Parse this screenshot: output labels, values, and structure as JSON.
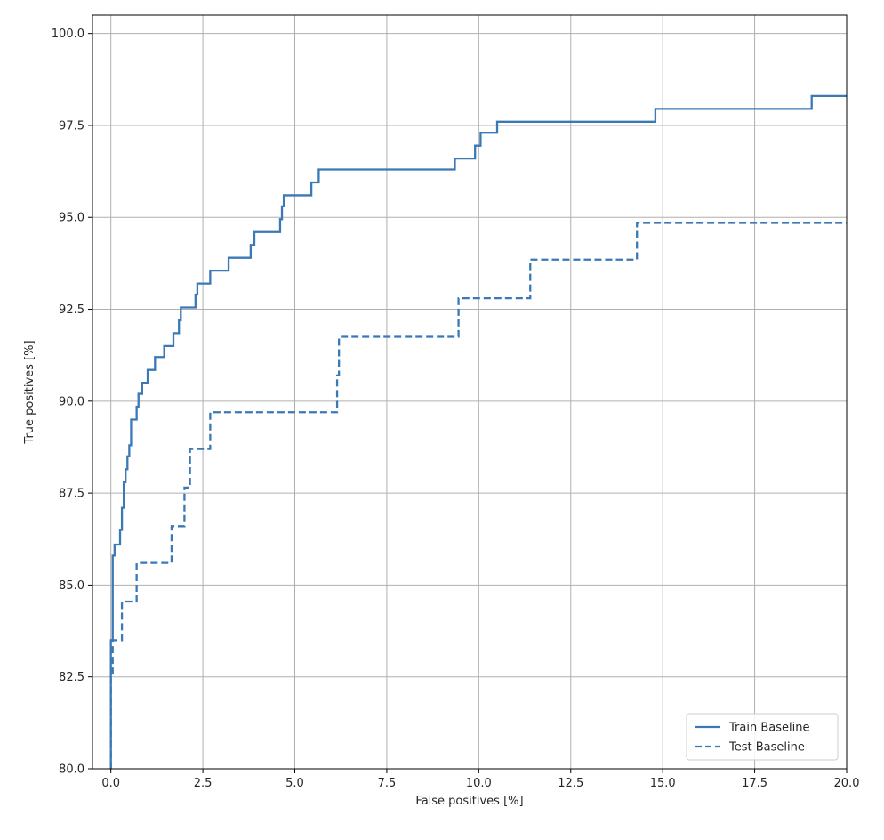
{
  "chart_data": {
    "type": "line",
    "title": "",
    "xlabel": "False positives [%]",
    "ylabel": "True positives [%]",
    "xlim": [
      -0.5,
      20
    ],
    "ylim": [
      80,
      100.5
    ],
    "grid": true,
    "legend_position": "lower-right",
    "x_ticks": [
      0.0,
      2.5,
      5.0,
      7.5,
      10.0,
      12.5,
      15.0,
      17.5,
      20.0
    ],
    "x_tick_labels": [
      "0.0",
      "2.5",
      "5.0",
      "7.5",
      "10.0",
      "12.5",
      "15.0",
      "17.5",
      "20.0"
    ],
    "y_ticks": [
      80.0,
      82.5,
      85.0,
      87.5,
      90.0,
      92.5,
      95.0,
      97.5,
      100.0
    ],
    "y_tick_labels": [
      "80.0",
      "82.5",
      "85.0",
      "87.5",
      "90.0",
      "92.5",
      "95.0",
      "97.5",
      "100.0"
    ],
    "series": [
      {
        "name": "Train Baseline",
        "color": "#3a78b6",
        "style": "solid",
        "x": [
          0.0,
          0.0,
          0.05,
          0.05,
          0.1,
          0.1,
          0.25,
          0.25,
          0.3,
          0.3,
          0.35,
          0.35,
          0.4,
          0.4,
          0.45,
          0.45,
          0.5,
          0.5,
          0.55,
          0.55,
          0.7,
          0.7,
          0.75,
          0.75,
          0.85,
          0.85,
          1.0,
          1.0,
          1.2,
          1.2,
          1.45,
          1.45,
          1.7,
          1.7,
          1.85,
          1.85,
          1.9,
          1.9,
          2.3,
          2.3,
          2.35,
          2.35,
          2.7,
          2.7,
          3.2,
          3.2,
          3.8,
          3.8,
          3.9,
          3.9,
          4.6,
          4.6,
          4.65,
          4.65,
          4.7,
          4.7,
          5.45,
          5.45,
          5.65,
          5.65,
          9.35,
          9.35,
          9.9,
          9.9,
          10.05,
          10.05,
          10.5,
          10.5,
          14.8,
          14.8,
          19.05,
          19.05,
          20.0
        ],
        "y": [
          80.0,
          83.5,
          83.5,
          85.8,
          85.8,
          86.1,
          86.1,
          86.5,
          86.5,
          87.1,
          87.1,
          87.8,
          87.8,
          88.15,
          88.15,
          88.5,
          88.5,
          88.8,
          88.8,
          89.5,
          89.5,
          89.85,
          89.85,
          90.2,
          90.2,
          90.5,
          90.5,
          90.85,
          90.85,
          91.2,
          91.2,
          91.5,
          91.5,
          91.85,
          91.85,
          92.2,
          92.2,
          92.55,
          92.55,
          92.9,
          92.9,
          93.2,
          93.2,
          93.55,
          93.55,
          93.9,
          93.9,
          94.25,
          94.25,
          94.6,
          94.6,
          94.95,
          94.95,
          95.3,
          95.3,
          95.6,
          95.6,
          95.95,
          95.95,
          96.3,
          96.3,
          96.6,
          96.6,
          96.95,
          96.95,
          97.3,
          97.3,
          97.6,
          97.6,
          97.95,
          97.95,
          98.3,
          98.3
        ]
      },
      {
        "name": "Test Baseline",
        "color": "#3a78b6",
        "style": "dashed",
        "x": [
          0.0,
          0.0,
          0.05,
          0.05,
          0.3,
          0.3,
          0.7,
          0.7,
          1.65,
          1.65,
          2.0,
          2.0,
          2.15,
          2.15,
          2.7,
          2.7,
          6.15,
          6.15,
          6.2,
          6.2,
          9.45,
          9.45,
          11.4,
          11.4,
          14.3,
          14.3,
          20.0
        ],
        "y": [
          80.0,
          82.5,
          82.5,
          83.5,
          83.5,
          84.55,
          84.55,
          85.6,
          85.6,
          86.6,
          86.6,
          87.65,
          87.65,
          88.7,
          88.7,
          89.7,
          89.7,
          90.7,
          90.7,
          91.75,
          91.75,
          92.8,
          92.8,
          93.85,
          93.85,
          94.85,
          94.85
        ]
      }
    ]
  }
}
